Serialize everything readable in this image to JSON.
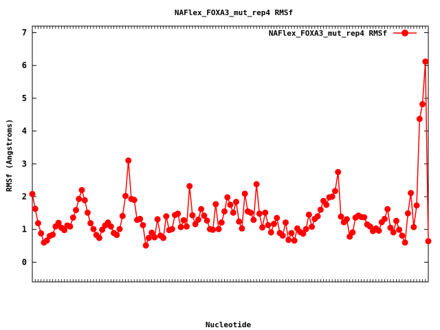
{
  "chart_data": {
    "type": "line",
    "title": "NAFlex_FOXA3_mut_rep4 RMSf",
    "xlabel": "Nucleotide",
    "ylabel": "RMSf (Angstroms)",
    "ylim": [
      -0.6,
      7.2
    ],
    "yticks": [
      0,
      1,
      2,
      3,
      4,
      5,
      6,
      7
    ],
    "grid": false,
    "legend_position": "top-right",
    "series": [
      {
        "name": "NAFlex_FOXA3_mut_rep4 RMSf",
        "color": "#ff0000",
        "marker": "circle",
        "values": [
          2.08,
          1.63,
          1.19,
          0.88,
          0.6,
          0.66,
          0.8,
          0.84,
          1.09,
          1.2,
          1.05,
          0.98,
          1.12,
          1.09,
          1.36,
          1.59,
          1.93,
          2.2,
          1.89,
          1.51,
          1.19,
          1.01,
          0.83,
          0.74,
          0.99,
          1.12,
          1.21,
          1.09,
          0.89,
          0.83,
          1.01,
          1.41,
          2.02,
          3.1,
          1.93,
          1.9,
          1.29,
          1.32,
          1.13,
          0.51,
          0.74,
          0.9,
          0.76,
          1.31,
          0.81,
          0.74,
          1.4,
          0.98,
          1.01,
          1.44,
          1.48,
          1.07,
          1.28,
          1.09,
          2.32,
          1.43,
          1.16,
          1.3,
          1.62,
          1.42,
          1.27,
          1.01,
          0.99,
          1.77,
          1.01,
          1.21,
          1.55,
          1.98,
          1.75,
          1.51,
          1.84,
          1.24,
          1.03,
          2.09,
          1.55,
          1.51,
          1.29,
          2.38,
          1.48,
          1.06,
          1.51,
          1.13,
          0.91,
          1.17,
          1.35,
          0.89,
          0.81,
          1.21,
          0.68,
          0.89,
          0.66,
          1.03,
          0.92,
          0.87,
          1.01,
          1.45,
          1.08,
          1.32,
          1.4,
          1.6,
          1.87,
          1.75,
          1.98,
          2.0,
          2.17,
          2.75,
          1.39,
          1.22,
          1.31,
          0.78,
          0.91,
          1.36,
          1.42,
          1.38,
          1.37,
          1.15,
          1.09,
          0.95,
          1.03,
          0.96,
          1.22,
          1.32,
          1.62,
          1.05,
          0.91,
          1.26,
          0.99,
          0.81,
          0.6,
          1.49,
          2.11,
          1.07,
          1.73,
          4.37,
          4.82,
          6.12,
          0.64
        ]
      }
    ]
  }
}
